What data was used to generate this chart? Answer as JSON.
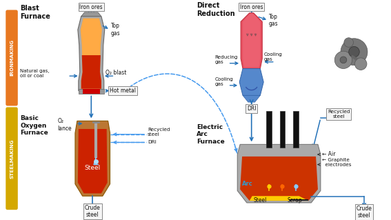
{
  "bg_color": "#ffffff",
  "ironmaking_label": "IRONMAKING",
  "steelmaking_label": "STEELMAKING",
  "ironmaking_color": "#e87820",
  "steelmaking_color": "#d4a800",
  "labels": {
    "blast_furnace": "Blast\nFurnace",
    "direct_reduction": "Direct\nReduction",
    "bof": "Basic\nOxygen\nFurnace",
    "eaf": "Electric\nArc\nFurnace",
    "iron_ores_bf": "Iron ores",
    "iron_ores_dr": "Iron ores",
    "top_gas_bf": "Top\ngas",
    "top_gas_dr": "Top\ngas",
    "natural_gas": "Natural gas,\noil or coal",
    "o2_blast": "O₂ blast",
    "hot_metal": "Hot metal",
    "recycled_steel_bof": "Recycled\nsteel",
    "dri_bof": "DRI",
    "o2_lance": "O₂\nlance",
    "crude_steel_bof": "Crude\nsteel",
    "reducing_gas": "Reducing\ngas",
    "cooling_gas_upper": "Cooling\ngas",
    "cooling_gas_lower": "Cooling\ngas",
    "dri": "DRI",
    "recycled_steel_eaf": "Recycled\nsteel",
    "air": "← Air",
    "graphite": "← Graphite\n  electrodes",
    "arc": "Arc",
    "steel_eaf": "Steel",
    "scrap": "Scrap",
    "crude_steel_eaf": "Crude\nsteel",
    "steel_bof": "Steel"
  },
  "arrow_blue": "#2472b8",
  "arrow_dashed": "#4499ee",
  "gray_dark": "#666666",
  "gray_med": "#999999",
  "gray_light": "#bbbbbb"
}
